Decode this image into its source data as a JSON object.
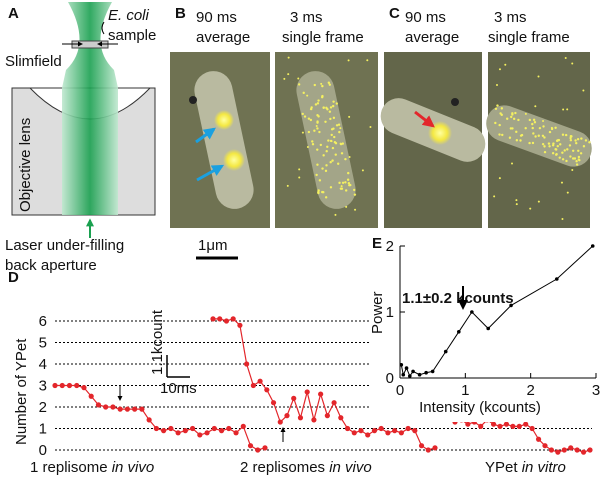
{
  "panel_labels": [
    "A",
    "B",
    "C",
    "D",
    "E"
  ],
  "panel_a": {
    "species": "E. coli",
    "sample": "sample",
    "technique": "Slimfield",
    "lens": "Objective lens",
    "laser": [
      "Laser under-filling",
      "back aperture"
    ]
  },
  "panel_b": {
    "left": [
      "90 ms",
      "average"
    ],
    "right": [
      "3 ms",
      "single frame"
    ]
  },
  "panel_c": {
    "left": [
      "90 ms",
      "average"
    ],
    "right": [
      "3 ms",
      "single frame"
    ]
  },
  "scale_bar": "1μm",
  "chart_data": [
    {
      "type": "line",
      "ylabel": "Number of YPet",
      "ylim": [
        0,
        6
      ],
      "yticks": [
        0,
        1,
        2,
        3,
        4,
        5,
        6
      ],
      "grid": true,
      "scale_bar": {
        "y": "1.1kcount",
        "x": "10ms"
      },
      "captions": [
        [
          "1 replisome ",
          "in vivo"
        ],
        [
          "2 replisomes ",
          "in vivo"
        ],
        [
          "YPet ",
          "in vitro"
        ]
      ],
      "series": [
        {
          "color": "#e3262b",
          "values": [
            3,
            3,
            3,
            3,
            2.9,
            2.5,
            2.1,
            2,
            2,
            1.9,
            1.9,
            1.9,
            1.9,
            1.4,
            1,
            0.9,
            1,
            0.8,
            0.9,
            1,
            0.7,
            0.8,
            1,
            0.9,
            1,
            0.8,
            1.1,
            0.2,
            0,
            0.1
          ]
        },
        {
          "color": "#e3262b",
          "values": [
            6.1,
            6.1,
            6,
            6.1,
            5.8,
            4,
            3,
            3.2,
            2.8,
            2.2,
            1.3,
            1.6,
            2.4,
            1.5,
            2.7,
            1.4,
            2.6,
            1.6,
            2.2,
            1.5,
            1,
            0.8,
            0.9,
            0.7,
            0.9,
            1,
            0.8,
            0.9,
            0.8,
            1,
            0.9,
            0.2,
            0,
            0.1
          ]
        },
        {
          "color": "#e3262b",
          "values": [
            1.3,
            1.4,
            1.2,
            1.3,
            1.1,
            1.4,
            1.2,
            1.1,
            1.2,
            1.1,
            1.1,
            1.2,
            1,
            0.5,
            0.2,
            0,
            -0.1,
            0,
            0.1,
            0,
            -0.1,
            0
          ]
        }
      ]
    },
    {
      "type": "line",
      "title": "1.1±0.2 kcounts",
      "xlabel": "Intensity (kcounts)",
      "ylabel": "Power",
      "xlim": [
        0,
        3
      ],
      "ylim": [
        0,
        2
      ],
      "xticks": [
        0,
        1,
        2,
        3
      ],
      "yticks": [
        0,
        1,
        2
      ],
      "color": "#000000",
      "x": [
        0.02,
        0.05,
        0.1,
        0.15,
        0.2,
        0.3,
        0.4,
        0.5,
        0.7,
        0.9,
        1.1,
        1.35,
        1.7,
        2.4,
        2.95
      ],
      "values": [
        0.2,
        0.05,
        0.15,
        0.03,
        0.1,
        0.05,
        0.08,
        0.1,
        0.4,
        0.7,
        1.0,
        0.75,
        1.1,
        1.5,
        2.0
      ]
    }
  ]
}
